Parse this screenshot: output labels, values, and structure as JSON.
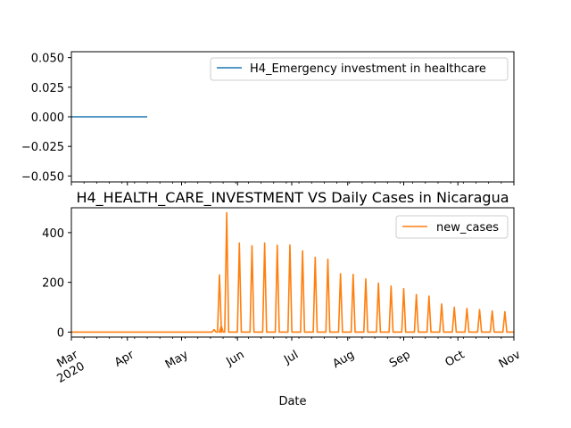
{
  "chart_data": [
    {
      "type": "line",
      "title": "",
      "xlabel": "",
      "ylabel": "",
      "ylim": [
        -0.055,
        0.055
      ],
      "yticks": [
        "0.050",
        "0.025",
        "0.000",
        "−0.025",
        "−0.050"
      ],
      "ytick_values": [
        0.05,
        0.025,
        0.0,
        -0.025,
        -0.05
      ],
      "xlim": [
        "2020-03-01",
        "2020-11-01"
      ],
      "legend": "top-right",
      "grid": false,
      "series": [
        {
          "name": "H4_Emergency investment in healthcare",
          "color": "#1f77b4",
          "x": [
            "2020-03-01",
            "2020-04-12",
            "2020-04-13",
            "2020-11-01"
          ],
          "values": [
            0,
            0,
            null,
            0
          ]
        }
      ]
    },
    {
      "type": "line",
      "title": "H4_HEALTH_CARE_INVESTMENT VS Daily Cases in Nicaragua",
      "xlabel": "Date",
      "ylabel": "",
      "ylim": [
        -20,
        500
      ],
      "yticks": [
        "400",
        "200",
        "0"
      ],
      "ytick_values": [
        400,
        200,
        0
      ],
      "xlim": [
        "2020-03-01",
        "2020-11-01"
      ],
      "xticks": [
        "Mar\n2020",
        "Apr",
        "May",
        "Jun",
        "Jul",
        "Aug",
        "Sep",
        "Oct",
        "Nov"
      ],
      "xtick_dates": [
        "2020-03-01",
        "2020-04-01",
        "2020-05-01",
        "2020-06-01",
        "2020-07-01",
        "2020-08-01",
        "2020-09-01",
        "2020-10-01",
        "2020-11-01"
      ],
      "legend": "top-right",
      "grid": false,
      "series": [
        {
          "name": "new_cases",
          "color": "#ff7f0e",
          "peaks": [
            {
              "date": "2020-05-19",
              "value": 10
            },
            {
              "date": "2020-05-22",
              "value": 230
            },
            {
              "date": "2020-05-23",
              "value": 25
            },
            {
              "date": "2020-05-26",
              "value": 480
            },
            {
              "date": "2020-06-02",
              "value": 358
            },
            {
              "date": "2020-06-09",
              "value": 347
            },
            {
              "date": "2020-06-16",
              "value": 358
            },
            {
              "date": "2020-06-23",
              "value": 349
            },
            {
              "date": "2020-06-30",
              "value": 350
            },
            {
              "date": "2020-07-07",
              "value": 327
            },
            {
              "date": "2020-07-14",
              "value": 301
            },
            {
              "date": "2020-07-21",
              "value": 293
            },
            {
              "date": "2020-07-28",
              "value": 235
            },
            {
              "date": "2020-08-04",
              "value": 232
            },
            {
              "date": "2020-08-11",
              "value": 214
            },
            {
              "date": "2020-08-18",
              "value": 197
            },
            {
              "date": "2020-08-25",
              "value": 185
            },
            {
              "date": "2020-09-01",
              "value": 175
            },
            {
              "date": "2020-09-08",
              "value": 151
            },
            {
              "date": "2020-09-15",
              "value": 145
            },
            {
              "date": "2020-09-22",
              "value": 113
            },
            {
              "date": "2020-09-29",
              "value": 100
            },
            {
              "date": "2020-10-06",
              "value": 95
            },
            {
              "date": "2020-10-13",
              "value": 90
            },
            {
              "date": "2020-10-20",
              "value": 85
            },
            {
              "date": "2020-10-27",
              "value": 82
            }
          ]
        }
      ]
    }
  ]
}
